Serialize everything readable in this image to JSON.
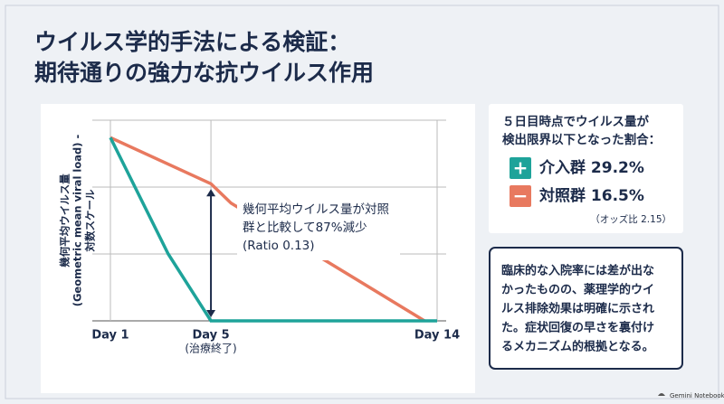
{
  "title": [
    "ウイルス学的手法による検証：",
    "期待通りの強力な抗ウイルス作用"
  ],
  "chart_data": {
    "type": "line",
    "y_label": [
      "幾何平均ウイルス量",
      "(Geometric mean viral load) -",
      "対数スケール"
    ],
    "xlim": [
      1,
      14
    ],
    "xticks": [
      {
        "value": 1,
        "label": "Day 1"
      },
      {
        "value": 5,
        "label": "Day 5"
      },
      {
        "value": 14,
        "label": "Day 14"
      }
    ],
    "x_note": "(治療終了)",
    "ylim": [
      0,
      3
    ],
    "yticks": [
      1,
      2
    ],
    "grid": true,
    "series": [
      {
        "color": "#e8795f",
        "x": [
          1,
          5,
          5.8,
          13.5
        ],
        "values": [
          2.74,
          2.05,
          1.76,
          0
        ]
      },
      {
        "color": "#1ea39a",
        "x": [
          1,
          3.3,
          5,
          14
        ],
        "values": [
          2.74,
          1.0,
          0,
          0
        ]
      }
    ],
    "annotation": [
      "幾何平均ウイルス量が対照",
      "群と比較して87%減少",
      "(Ratio 0.13)"
    ]
  },
  "sidebar": {
    "heading": [
      "５日目時点でウイルス量が",
      "検出限界以下となった割合："
    ],
    "groups": [
      {
        "icon": "+",
        "label": "介入群 29.2%",
        "color": "#1ea39a"
      },
      {
        "icon": "−",
        "label": "対照群 16.5%",
        "color": "#e8795f"
      }
    ],
    "note": "（オッズ比 2.15）"
  },
  "conclusion": [
    "臨床的な入院率には差が出な",
    "かったものの、薬理学的ウイ",
    "ルス排除効果は明確に示され",
    "た。症状回復の早さを裏付け",
    "るメカニズム的根拠となる。"
  ],
  "footer": "Gemini Notebook"
}
